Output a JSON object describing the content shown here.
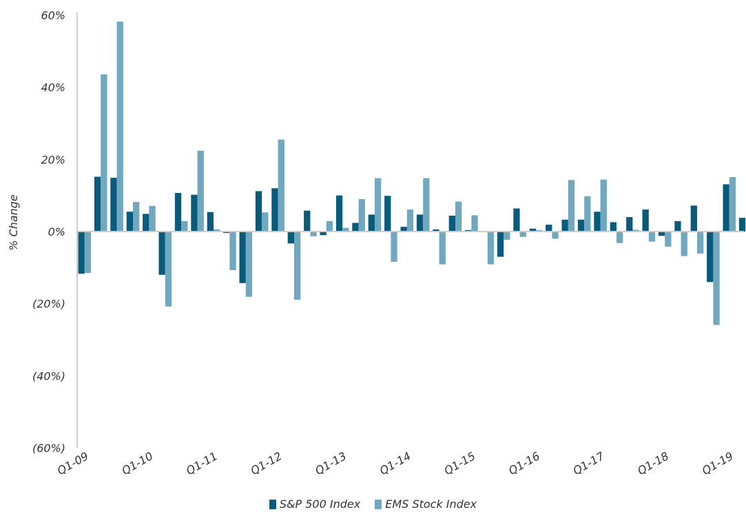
{
  "chart_data": {
    "type": "bar",
    "title": "",
    "xlabel": "",
    "ylabel": "% Change",
    "ylim": [
      -60,
      60
    ],
    "yticks": [
      -60,
      -40,
      -20,
      0,
      20,
      40,
      60
    ],
    "ytick_labels": [
      "(60%)",
      "(40%)",
      "(20%)",
      "0%",
      "20%",
      "40%",
      "60%"
    ],
    "x_tick_labels": [
      "Q1-09",
      "Q1-10",
      "Q1-11",
      "Q1-12",
      "Q1-13",
      "Q1-14",
      "Q1-15",
      "Q1-16",
      "Q1-17",
      "Q1-18",
      "Q1-19"
    ],
    "grid": false,
    "legend_position": "bottom",
    "colors": {
      "sp500": "#0a5a7c",
      "ems": "#6fa8bf",
      "axis": "#d0cccc"
    },
    "categories": [
      "Q1-09",
      "Q2-09",
      "Q3-09",
      "Q4-09",
      "Q1-10",
      "Q2-10",
      "Q3-10",
      "Q4-10",
      "Q1-11",
      "Q2-11",
      "Q3-11",
      "Q4-11",
      "Q1-12",
      "Q2-12",
      "Q3-12",
      "Q4-12",
      "Q1-13",
      "Q2-13",
      "Q3-13",
      "Q4-13",
      "Q1-14",
      "Q2-14",
      "Q3-14",
      "Q4-14",
      "Q1-15",
      "Q2-15",
      "Q3-15",
      "Q4-15",
      "Q1-16",
      "Q2-16",
      "Q3-16",
      "Q4-16",
      "Q1-17",
      "Q2-17",
      "Q3-17",
      "Q4-17",
      "Q1-18",
      "Q2-18",
      "Q3-18",
      "Q4-18",
      "Q1-19",
      "Q2-19"
    ],
    "series": [
      {
        "name": "S&P 500 Index",
        "values": [
          -11.7,
          15.2,
          14.9,
          5.5,
          4.9,
          -12.0,
          10.7,
          10.2,
          5.4,
          -0.4,
          -14.3,
          11.2,
          12.0,
          -3.3,
          5.8,
          -1.0,
          10.0,
          2.4,
          4.7,
          9.9,
          1.3,
          4.7,
          0.6,
          4.4,
          0.4,
          -0.2,
          -7.0,
          6.4,
          0.8,
          1.9,
          3.3,
          3.3,
          5.5,
          2.6,
          4.0,
          6.1,
          -1.2,
          2.9,
          7.2,
          -14.0,
          13.1,
          3.8
        ]
      },
      {
        "name": "EMS Stock Index",
        "values": [
          -11.5,
          43.6,
          58.2,
          8.2,
          7.1,
          -20.8,
          2.9,
          22.4,
          0.6,
          -10.7,
          -18.1,
          5.3,
          25.5,
          -18.9,
          -1.3,
          2.9,
          1.0,
          9.0,
          14.8,
          -8.4,
          6.1,
          14.8,
          -9.1,
          8.3,
          4.5,
          -9.1,
          -2.3,
          -1.5,
          0.4,
          -2.0,
          14.3,
          9.8,
          14.4,
          -3.2,
          0.5,
          -2.8,
          -4.2,
          -6.8,
          -6.1,
          -25.9,
          15.1,
          0.0
        ]
      }
    ]
  }
}
